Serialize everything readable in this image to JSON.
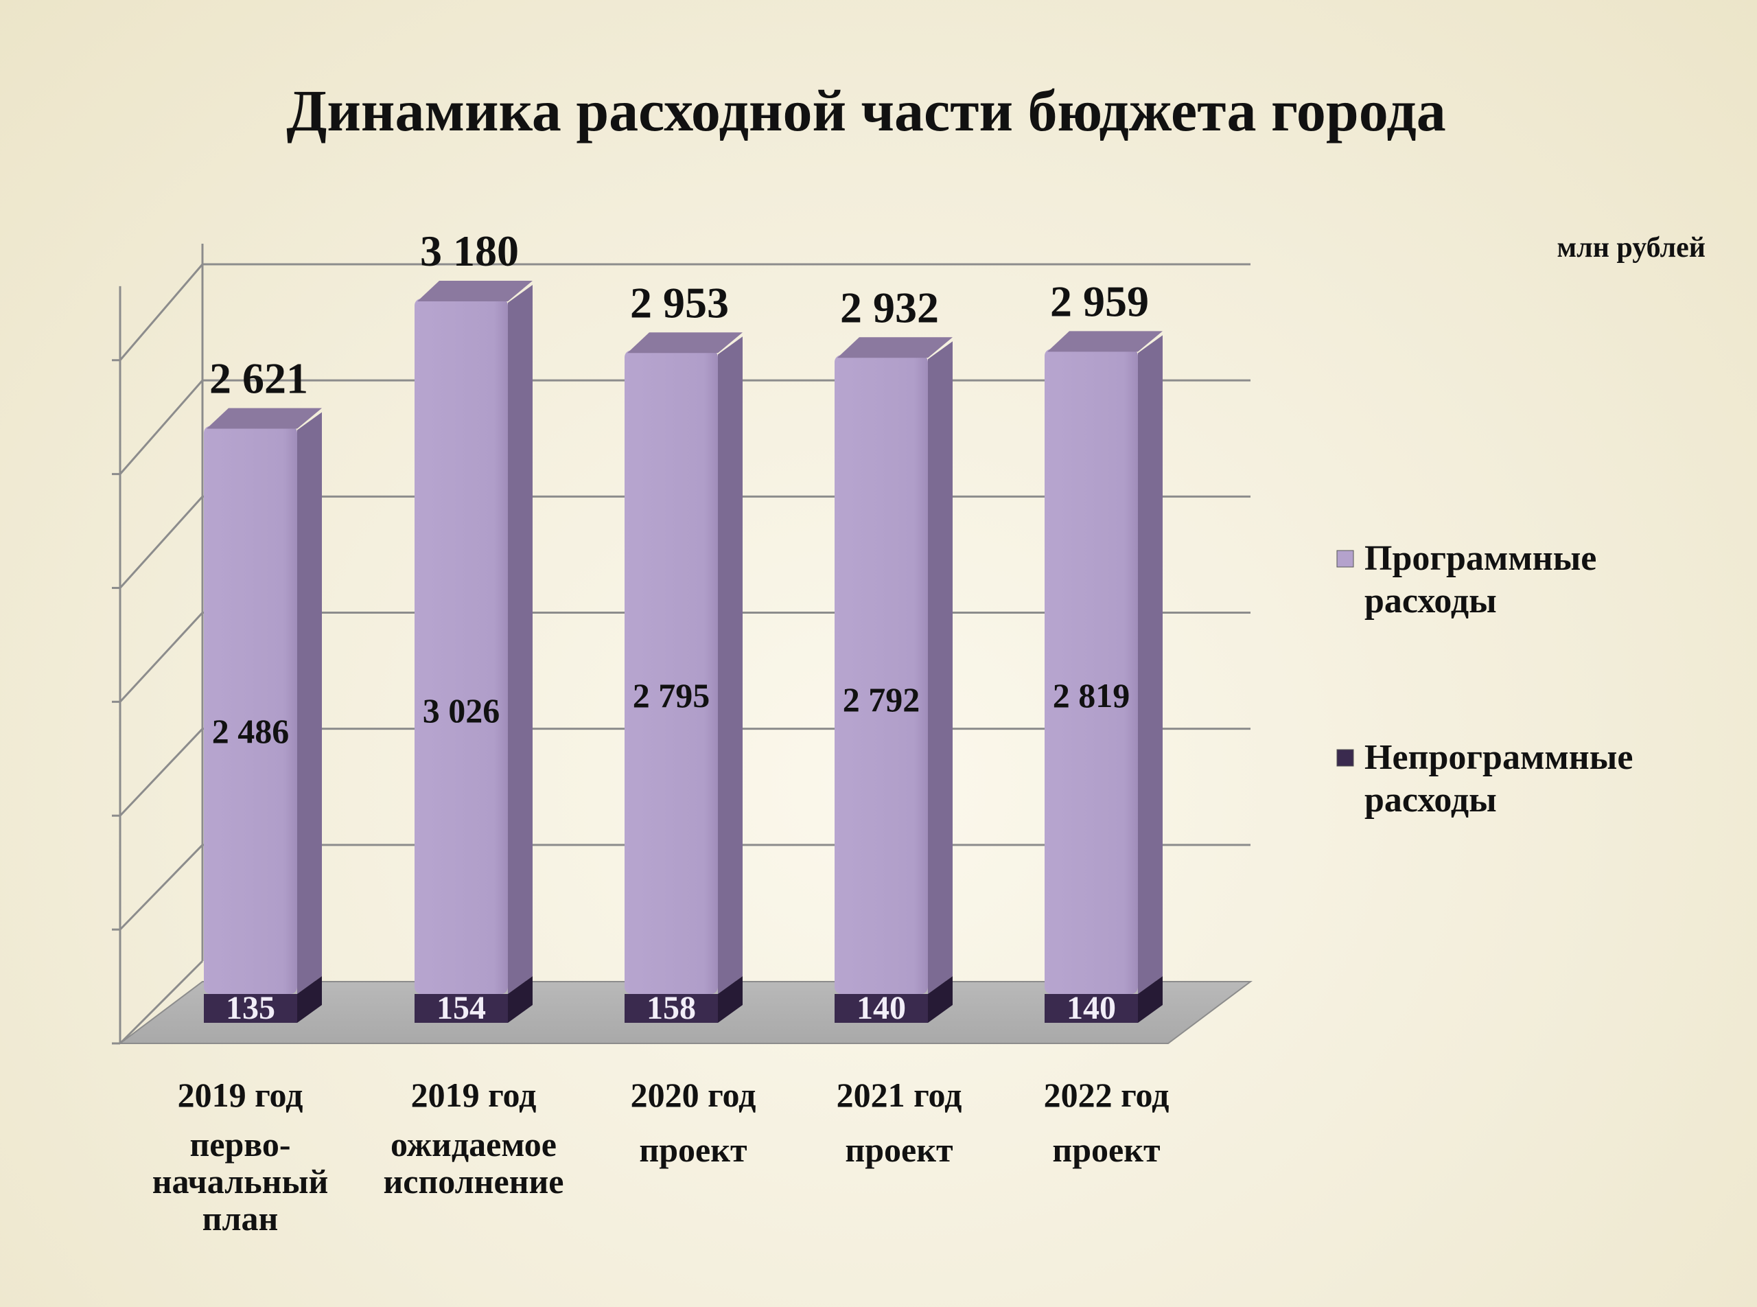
{
  "chart_data": {
    "type": "bar",
    "stacked": true,
    "title": "Динамика  расходной части бюджета города",
    "unit_label": "млн рублей",
    "categories": [
      [
        "2019 год",
        "перво-",
        "начальный",
        "план"
      ],
      [
        "2019 год",
        "ожидаемое",
        "исполнение"
      ],
      [
        "2020 год",
        "проект"
      ],
      [
        "2021 год",
        "проект"
      ],
      [
        "2022 год",
        "проект"
      ]
    ],
    "series": [
      {
        "name": "Непрограммные расходы",
        "legend_lines": [
          "Непрограммные",
          "расходы"
        ],
        "color": "#3a2a4e",
        "values": [
          135,
          154,
          158,
          140,
          140
        ],
        "labels": [
          "135",
          "154",
          "158",
          "140",
          "140"
        ]
      },
      {
        "name": "Программные расходы",
        "legend_lines": [
          "Программные",
          "расходы"
        ],
        "color": "#b4a2cc",
        "values": [
          2486,
          3026,
          2795,
          2792,
          2819
        ],
        "labels": [
          "2 486",
          "3 026",
          "2 795",
          "2 792",
          "2 819"
        ]
      }
    ],
    "totals": [
      2621,
      3180,
      2953,
      2932,
      2959
    ],
    "total_labels": [
      "2 621",
      "3 180",
      "2 953",
      "2 932",
      "2 959"
    ],
    "ylim": [
      0,
      3500
    ],
    "grid": true,
    "legend_position": "right"
  }
}
